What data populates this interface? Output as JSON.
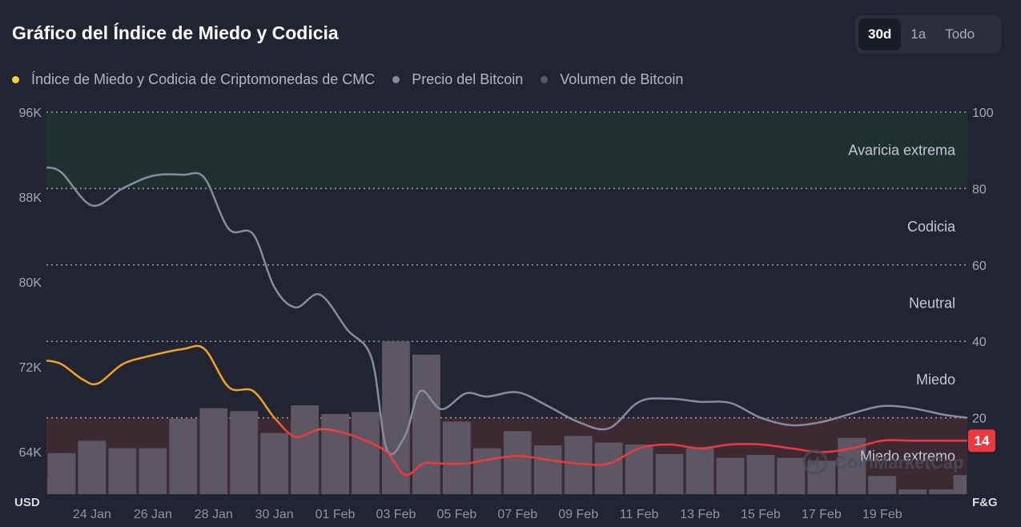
{
  "header": {
    "title": "Gráfico del Índice de Miedo y Codicia",
    "ranges": [
      {
        "label": "30d",
        "active": true
      },
      {
        "label": "1a",
        "active": false
      },
      {
        "label": "Todo",
        "active": false
      }
    ]
  },
  "colors": {
    "fng_high": "#f1a325",
    "fng_low": "#ea3943",
    "price": "#868ca0",
    "volume": "#5d5663",
    "greed_zone": "#20302f",
    "fear_zone": "#3c2a33",
    "badge": "#ea3943"
  },
  "chart_data": {
    "type": "line",
    "legend": [
      {
        "name": "Índice de Miedo y Codicia de Criptomonedas de CMC",
        "color": "#f5d13b"
      },
      {
        "name": "Precio del Bitcoin",
        "color": "#868ca0"
      },
      {
        "name": "Volumen de Bitcoin",
        "color": "#5d5663"
      }
    ],
    "left_axis": {
      "unit": "USD",
      "min": 60000,
      "max": 96000,
      "ticks": [
        96000,
        88000,
        80000,
        72000,
        64000
      ],
      "tick_labels": [
        "96K",
        "88K",
        "80K",
        "72K",
        "64K"
      ]
    },
    "right_axis": {
      "unit": "F&G",
      "min": 0,
      "max": 100,
      "ticks": [
        100,
        80,
        60,
        40,
        20
      ],
      "tick_labels": [
        "100",
        "80",
        "60",
        "40",
        "20"
      ]
    },
    "zones": [
      {
        "label": "Avaricia extrema",
        "min": 80,
        "max": 100
      },
      {
        "label": "Codicia",
        "min": 60,
        "max": 80
      },
      {
        "label": "Neutral",
        "min": 40,
        "max": 60
      },
      {
        "label": "Miedo",
        "min": 20,
        "max": 40
      },
      {
        "label": "Miedo extremo",
        "min": 0,
        "max": 20
      }
    ],
    "x_labels": [
      "24 Jan",
      "26 Jan",
      "28 Jan",
      "30 Jan",
      "01 Feb",
      "03 Feb",
      "05 Feb",
      "07 Feb",
      "09 Feb",
      "11 Feb",
      "13 Feb",
      "15 Feb",
      "17 Feb",
      "19 Feb"
    ],
    "x_start": 22.5,
    "x_end": 52.8,
    "series": [
      {
        "name": "Precio del Bitcoin",
        "x": [
          22.5,
          23.0,
          24.0,
          25.0,
          26.0,
          27.0,
          27.7,
          28.5,
          29.3,
          30.0,
          30.7,
          31.5,
          32.4,
          33.2,
          33.7,
          34.3,
          34.8,
          35.5,
          36.3,
          37.0,
          38.0,
          39.0,
          40.0,
          41.0,
          42.0,
          43.0,
          44.0,
          45.0,
          46.0,
          47.0,
          48.0,
          49.0,
          50.0,
          51.0,
          52.0,
          52.8
        ],
        "values": [
          90800,
          90300,
          87200,
          88800,
          90000,
          90100,
          89800,
          85000,
          84500,
          79500,
          77600,
          78800,
          75500,
          72800,
          64200,
          65500,
          69700,
          68000,
          69500,
          69200,
          69600,
          68300,
          66800,
          66200,
          68700,
          69000,
          68700,
          68600,
          67200,
          66500,
          66800,
          67600,
          68300,
          68100,
          67500,
          67200
        ]
      },
      {
        "name": "Índice de Miedo y Codicia de Criptomonedas de CMC",
        "x": [
          22.5,
          23.0,
          23.7,
          24.2,
          25.0,
          25.8,
          27.0,
          27.7,
          28.5,
          29.3,
          30.0,
          30.7,
          31.5,
          32.3,
          33.0,
          33.7,
          34.3,
          34.9,
          35.5,
          36.3,
          37.0,
          38.0,
          39.0,
          40.0,
          41.0,
          42.0,
          43.0,
          44.0,
          45.0,
          46.0,
          47.0,
          48.0,
          49.0,
          50.0,
          51.0,
          52.0,
          52.8
        ],
        "values": [
          35,
          34,
          30,
          29,
          34,
          36,
          38,
          38,
          28,
          27,
          20,
          15,
          17,
          16,
          14,
          11,
          5,
          8,
          8,
          8,
          9,
          10,
          9,
          8,
          8,
          12,
          13,
          12,
          13,
          13,
          12,
          11,
          12,
          14,
          14,
          14,
          14
        ]
      },
      {
        "name": "Volumen de Bitcoin",
        "x": [
          22.5,
          23.0,
          24.0,
          25.0,
          26.0,
          27.0,
          28.0,
          29.0,
          30.0,
          31.0,
          32.0,
          33.0,
          34.0,
          35.0,
          36.0,
          37.0,
          38.0,
          39.0,
          40.0,
          41.0,
          42.0,
          43.0,
          44.0,
          45.0,
          46.0,
          47.0,
          48.0,
          49.0,
          50.0,
          51.0,
          52.0,
          52.8
        ],
        "values": [
          1.7,
          4.3,
          5.6,
          4.8,
          4.8,
          7.9,
          9.0,
          8.7,
          6.4,
          9.3,
          8.4,
          8.6,
          16.0,
          14.6,
          7.6,
          4.8,
          6.6,
          5.1,
          6.1,
          5.4,
          5.2,
          4.2,
          4.8,
          3.8,
          4.1,
          3.8,
          3.5,
          5.9,
          1.9,
          0.5,
          0.5,
          2.0
        ]
      }
    ],
    "current_value": "14",
    "grid": true,
    "legend_position": "top-left"
  },
  "watermark": "CoinMarketCap"
}
